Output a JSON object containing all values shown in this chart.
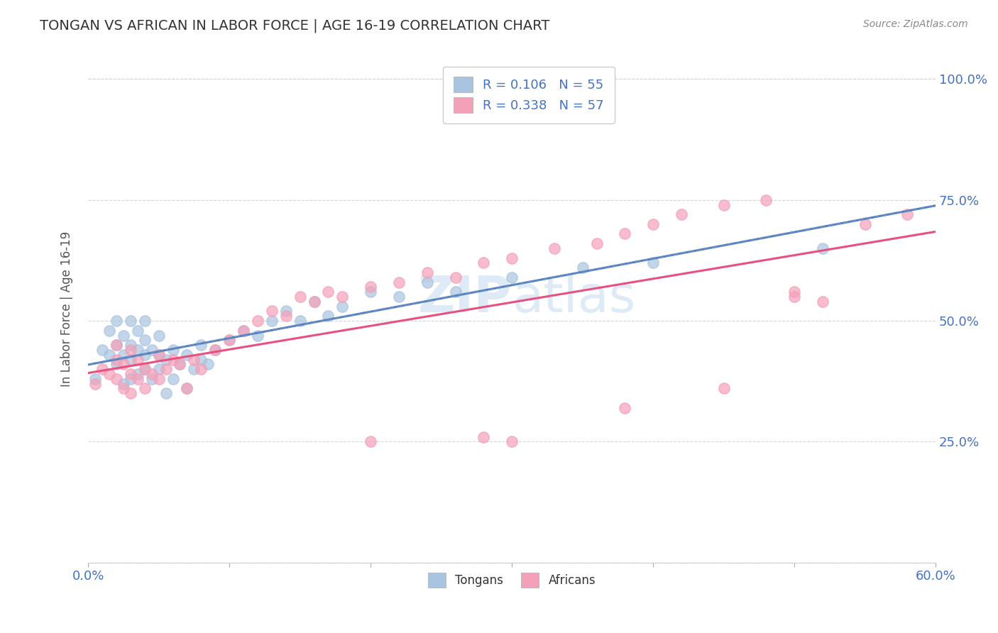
{
  "title": "TONGAN VS AFRICAN IN LABOR FORCE | AGE 16-19 CORRELATION CHART",
  "source": "Source: ZipAtlas.com",
  "ylabel": "In Labor Force | Age 16-19",
  "xlim": [
    0.0,
    0.6
  ],
  "ylim": [
    0.0,
    1.05
  ],
  "tongans_R": 0.106,
  "tongans_N": 55,
  "africans_R": 0.338,
  "africans_N": 57,
  "tongan_color": "#a8c4e0",
  "african_color": "#f4a0b8",
  "tongan_line_color": "#5080c0",
  "african_line_color": "#e85080",
  "watermark": "ZIPatlas",
  "tongans_x": [
    0.005,
    0.01,
    0.015,
    0.015,
    0.02,
    0.02,
    0.02,
    0.025,
    0.025,
    0.025,
    0.03,
    0.03,
    0.03,
    0.03,
    0.035,
    0.035,
    0.035,
    0.04,
    0.04,
    0.04,
    0.04,
    0.045,
    0.045,
    0.05,
    0.05,
    0.05,
    0.055,
    0.055,
    0.06,
    0.06,
    0.065,
    0.07,
    0.07,
    0.075,
    0.08,
    0.08,
    0.085,
    0.09,
    0.1,
    0.11,
    0.12,
    0.13,
    0.14,
    0.15,
    0.16,
    0.17,
    0.18,
    0.2,
    0.22,
    0.24,
    0.26,
    0.3,
    0.35,
    0.4,
    0.52
  ],
  "tongans_y": [
    0.38,
    0.44,
    0.43,
    0.48,
    0.41,
    0.45,
    0.5,
    0.37,
    0.43,
    0.47,
    0.38,
    0.42,
    0.45,
    0.5,
    0.39,
    0.44,
    0.48,
    0.4,
    0.43,
    0.46,
    0.5,
    0.38,
    0.44,
    0.4,
    0.43,
    0.47,
    0.35,
    0.42,
    0.38,
    0.44,
    0.41,
    0.36,
    0.43,
    0.4,
    0.42,
    0.45,
    0.41,
    0.44,
    0.46,
    0.48,
    0.47,
    0.5,
    0.52,
    0.5,
    0.54,
    0.51,
    0.53,
    0.56,
    0.55,
    0.58,
    0.56,
    0.59,
    0.61,
    0.62,
    0.65
  ],
  "africans_x": [
    0.005,
    0.01,
    0.015,
    0.02,
    0.02,
    0.02,
    0.025,
    0.025,
    0.03,
    0.03,
    0.03,
    0.035,
    0.035,
    0.04,
    0.04,
    0.045,
    0.05,
    0.05,
    0.055,
    0.06,
    0.065,
    0.07,
    0.075,
    0.08,
    0.09,
    0.1,
    0.11,
    0.12,
    0.13,
    0.14,
    0.15,
    0.16,
    0.17,
    0.18,
    0.2,
    0.22,
    0.24,
    0.26,
    0.28,
    0.3,
    0.33,
    0.36,
    0.38,
    0.4,
    0.42,
    0.45,
    0.48,
    0.5,
    0.52,
    0.55,
    0.58,
    0.38,
    0.28,
    0.45,
    0.5,
    0.2,
    0.3
  ],
  "africans_y": [
    0.37,
    0.4,
    0.39,
    0.38,
    0.42,
    0.45,
    0.36,
    0.41,
    0.35,
    0.39,
    0.44,
    0.38,
    0.42,
    0.36,
    0.4,
    0.39,
    0.38,
    0.43,
    0.4,
    0.42,
    0.41,
    0.36,
    0.42,
    0.4,
    0.44,
    0.46,
    0.48,
    0.5,
    0.52,
    0.51,
    0.55,
    0.54,
    0.56,
    0.55,
    0.57,
    0.58,
    0.6,
    0.59,
    0.62,
    0.63,
    0.65,
    0.66,
    0.68,
    0.7,
    0.72,
    0.74,
    0.75,
    0.56,
    0.54,
    0.7,
    0.72,
    0.32,
    0.26,
    0.36,
    0.55,
    0.25,
    0.25
  ]
}
